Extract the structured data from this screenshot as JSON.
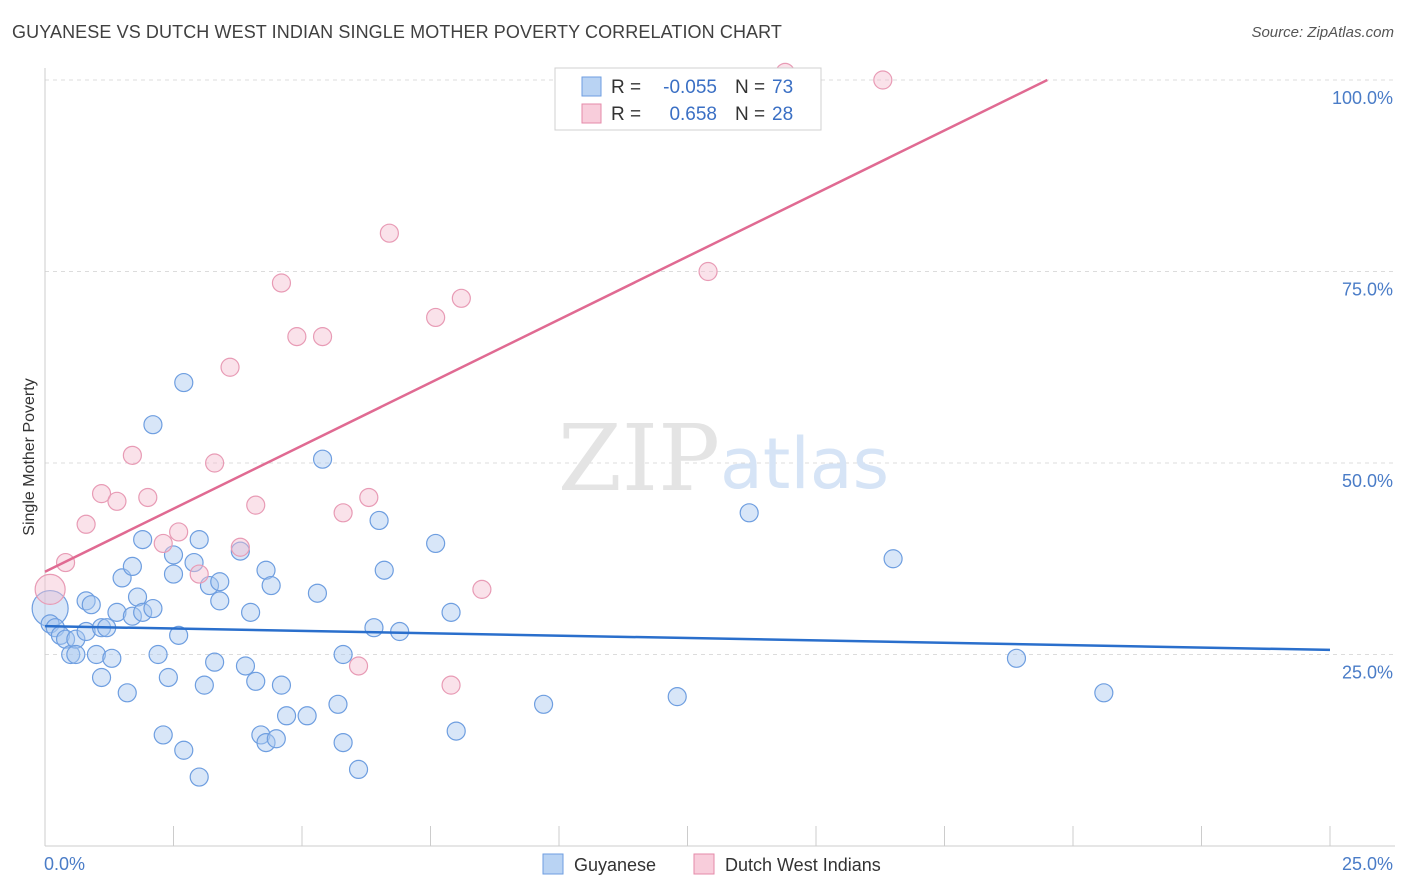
{
  "title": "GUYANESE VS DUTCH WEST INDIAN SINGLE MOTHER POVERTY CORRELATION CHART",
  "source": "Source: ZipAtlas.com",
  "colors": {
    "blue": "#4a86d8",
    "blue_fill": "#a9c8f0",
    "pink": "#e07096",
    "pink_fill": "#f5bfd1",
    "blue_line": "#2a6fcc",
    "pink_line": "#e06a92"
  },
  "legend": {
    "rows": [
      {
        "r_label": "R =",
        "r_value": "-0.055",
        "n_label": "N =",
        "n_value": "73"
      },
      {
        "r_label": "R =",
        "r_value": "0.658",
        "n_label": "N =",
        "n_value": "28"
      }
    ]
  },
  "bottom_legend": {
    "series1": "Guyanese",
    "series2": "Dutch West Indians"
  },
  "watermark": {
    "zip": "ZIP",
    "atlas": "atlas"
  },
  "chart_data": {
    "type": "scatter",
    "title": "GUYANESE VS DUTCH WEST INDIAN SINGLE MOTHER POVERTY CORRELATION CHART",
    "ylabel": "Single Mother Poverty",
    "xlabel": "",
    "xlim": [
      0,
      25
    ],
    "ylim": [
      0,
      103
    ],
    "x_ticks": [
      "0.0%",
      "25.0%"
    ],
    "y_ticks": [
      {
        "value": 100,
        "label": "100.0%"
      },
      {
        "value": 75,
        "label": "75.0%"
      },
      {
        "value": 50,
        "label": "50.0%"
      },
      {
        "value": 25,
        "label": "25.0%"
      }
    ],
    "series": [
      {
        "name": "Guyanese",
        "r": -0.055,
        "n": 73,
        "trend": {
          "x": [
            0,
            25
          ],
          "y": [
            28.7,
            25.6
          ]
        },
        "points": [
          [
            0.1,
            31
          ],
          [
            0.1,
            29
          ],
          [
            0.2,
            28.5
          ],
          [
            0.3,
            27.5
          ],
          [
            0.4,
            27
          ],
          [
            0.5,
            25
          ],
          [
            0.6,
            27
          ],
          [
            0.6,
            25
          ],
          [
            0.8,
            28
          ],
          [
            0.8,
            32
          ],
          [
            0.9,
            31.5
          ],
          [
            1.0,
            25
          ],
          [
            1.1,
            28.5
          ],
          [
            1.1,
            22
          ],
          [
            1.2,
            28.5
          ],
          [
            1.3,
            24.5
          ],
          [
            1.4,
            30.5
          ],
          [
            1.5,
            35
          ],
          [
            1.6,
            20
          ],
          [
            1.7,
            30
          ],
          [
            1.7,
            36.5
          ],
          [
            1.8,
            32.5
          ],
          [
            1.9,
            30.5
          ],
          [
            1.9,
            40
          ],
          [
            2.1,
            55
          ],
          [
            2.1,
            31
          ],
          [
            2.2,
            25
          ],
          [
            2.3,
            14.5
          ],
          [
            2.4,
            22
          ],
          [
            2.5,
            38
          ],
          [
            2.5,
            35.5
          ],
          [
            2.6,
            27.5
          ],
          [
            2.7,
            60.5
          ],
          [
            2.7,
            12.5
          ],
          [
            2.9,
            37
          ],
          [
            3.0,
            40
          ],
          [
            3.0,
            9
          ],
          [
            3.1,
            21
          ],
          [
            3.2,
            34
          ],
          [
            3.3,
            24
          ],
          [
            3.4,
            34.5
          ],
          [
            3.4,
            32
          ],
          [
            3.8,
            38.5
          ],
          [
            3.9,
            23.5
          ],
          [
            4.0,
            30.5
          ],
          [
            4.1,
            21.5
          ],
          [
            4.2,
            14.5
          ],
          [
            4.3,
            36
          ],
          [
            4.3,
            13.5
          ],
          [
            4.4,
            34
          ],
          [
            4.5,
            14
          ],
          [
            4.6,
            21
          ],
          [
            4.7,
            17
          ],
          [
            5.1,
            17
          ],
          [
            5.3,
            33
          ],
          [
            5.4,
            50.5
          ],
          [
            5.7,
            18.5
          ],
          [
            5.8,
            13.5
          ],
          [
            5.8,
            25
          ],
          [
            6.1,
            10
          ],
          [
            6.4,
            28.5
          ],
          [
            6.5,
            42.5
          ],
          [
            6.6,
            36
          ],
          [
            6.9,
            28
          ],
          [
            7.6,
            39.5
          ],
          [
            7.9,
            30.5
          ],
          [
            8.0,
            15
          ],
          [
            9.7,
            18.5
          ],
          [
            12.3,
            19.5
          ],
          [
            13.7,
            43.5
          ],
          [
            16.5,
            37.5
          ],
          [
            18.9,
            24.5
          ],
          [
            20.6,
            20
          ]
        ]
      },
      {
        "name": "Dutch West Indians",
        "r": 0.658,
        "n": 28,
        "trend": {
          "x": [
            0,
            19.5
          ],
          "y": [
            35.8,
            100
          ]
        },
        "points": [
          [
            0.1,
            33.5
          ],
          [
            0.4,
            37
          ],
          [
            0.8,
            42
          ],
          [
            1.1,
            46
          ],
          [
            1.4,
            45
          ],
          [
            1.7,
            51
          ],
          [
            2.0,
            45.5
          ],
          [
            2.3,
            39.5
          ],
          [
            2.6,
            41
          ],
          [
            3.0,
            35.5
          ],
          [
            3.3,
            50
          ],
          [
            3.6,
            62.5
          ],
          [
            3.8,
            39
          ],
          [
            4.1,
            44.5
          ],
          [
            4.6,
            73.5
          ],
          [
            4.9,
            66.5
          ],
          [
            5.4,
            66.5
          ],
          [
            5.8,
            43.5
          ],
          [
            6.1,
            23.5
          ],
          [
            6.3,
            45.5
          ],
          [
            6.7,
            80
          ],
          [
            7.6,
            69
          ],
          [
            7.9,
            21
          ],
          [
            8.1,
            71.5
          ],
          [
            8.5,
            33.5
          ],
          [
            12.9,
            75
          ],
          [
            14.4,
            101
          ],
          [
            16.3,
            100
          ]
        ]
      }
    ]
  }
}
